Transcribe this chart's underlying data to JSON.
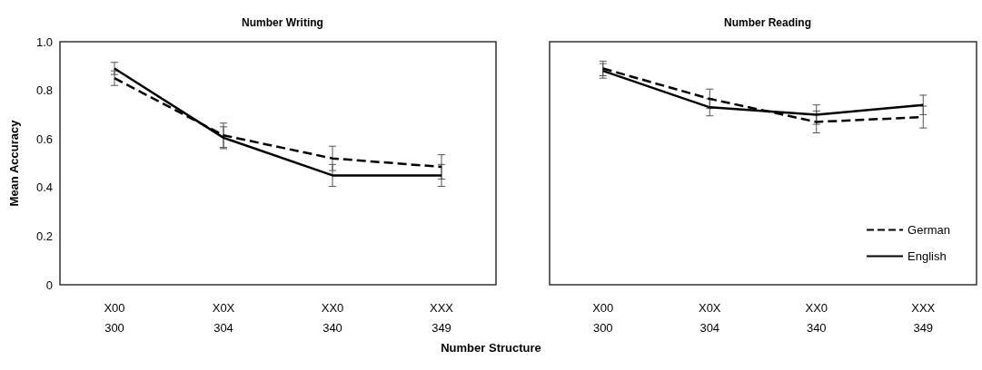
{
  "chart_data": [
    {
      "type": "line",
      "title": "Number Writing",
      "ylabel": "Mean Accuracy",
      "xlabel": "Number Structure",
      "categories": [
        "X00\n300",
        "X0X\n304",
        "XX0\n340",
        "XXX\n349"
      ],
      "series": [
        {
          "color": "#000000",
          "line_style": "dashed",
          "values": [
            0.85,
            0.615,
            0.52,
            0.485
          ],
          "errors": [
            0.03,
            0.05,
            0.05,
            0.05
          ]
        },
        {
          "color": "#000000",
          "line_style": "solid",
          "values": [
            0.89,
            0.605,
            0.45,
            0.45
          ],
          "errors": [
            0.025,
            0.045,
            0.045,
            0.045
          ]
        }
      ],
      "ylim": [
        0,
        1
      ],
      "yticks": [
        0,
        0.2,
        0.4,
        0.6,
        0.8,
        {
          "value": 1,
          "label": "1.0"
        }
      ],
      "grid": false,
      "legend": false,
      "marker": "none"
    },
    {
      "type": "line",
      "title": "Number Reading",
      "categories": [
        "X00\n300",
        "X0X\n304",
        "XX0\n340",
        "XXX\n349"
      ],
      "series": [
        {
          "name": "German",
          "color": "#000000",
          "line_style": "dashed",
          "values": [
            0.89,
            0.765,
            0.67,
            0.69
          ],
          "errors": [
            0.03,
            0.04,
            0.045,
            0.045
          ]
        },
        {
          "name": "English",
          "color": "#000000",
          "line_style": "solid",
          "values": [
            0.88,
            0.73,
            0.7,
            0.74
          ],
          "errors": [
            0.03,
            0.035,
            0.04,
            0.04
          ]
        }
      ],
      "ylim": [
        0,
        1
      ],
      "yticks": [
        0,
        0.2,
        0.4,
        0.6,
        0.8,
        1
      ],
      "grid": false,
      "legend": "bottom right",
      "marker": "none",
      "tick_labels": "x"
    }
  ]
}
